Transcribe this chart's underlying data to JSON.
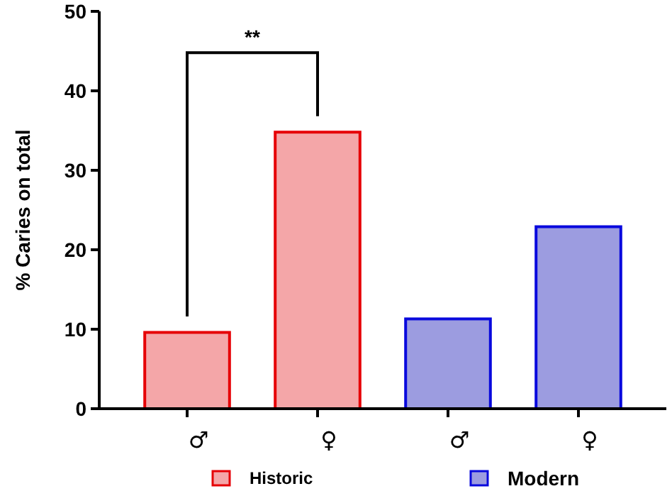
{
  "chart_data": {
    "type": "bar",
    "ylabel": "% Caries on total",
    "categories": [
      "♂",
      "♀",
      "♂",
      "♀"
    ],
    "series": [
      {
        "name": "Historic",
        "color": "#f4a6a8",
        "values": [
          9.6,
          34.8,
          null,
          null
        ]
      },
      {
        "name": "Modern",
        "color": "#9c9ce0",
        "values": [
          null,
          null,
          11.3,
          22.9
        ]
      }
    ],
    "ylim": [
      0,
      50
    ],
    "yticks": [
      0,
      10,
      20,
      30,
      40,
      50
    ],
    "grid": false,
    "legend": "bottom",
    "annotations": [
      "**"
    ]
  }
}
